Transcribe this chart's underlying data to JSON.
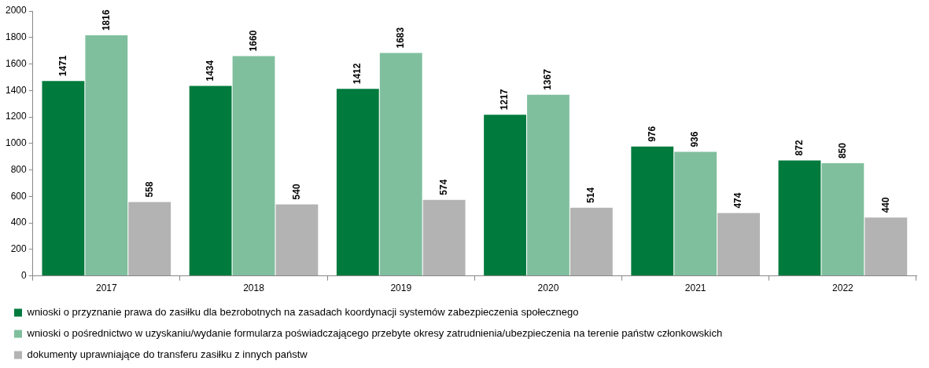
{
  "chart_data": {
    "type": "bar",
    "categories": [
      "2017",
      "2018",
      "2019",
      "2020",
      "2021",
      "2022"
    ],
    "series": [
      {
        "name": "wnioski o przyznanie prawa do zasiłku dla bezrobotnych na zasadach koordynacji systemów zabezpieczenia społecznego",
        "color": "#007a3d",
        "values": [
          1471,
          1434,
          1412,
          1217,
          976,
          872
        ]
      },
      {
        "name": "wnioski o pośrednictwo w uzyskaniu/wydanie formularza poświadczającego przebyte okresy zatrudnienia/ubezpieczenia na terenie państw członkowskich",
        "color": "#80bf9e",
        "values": [
          1816,
          1660,
          1683,
          1367,
          936,
          850
        ]
      },
      {
        "name": "dokumenty uprawniające do transferu zasiłku z innych państw",
        "color": "#b3b3b3",
        "values": [
          558,
          540,
          574,
          514,
          474,
          440
        ]
      }
    ],
    "ylim": [
      0,
      2000
    ],
    "yticks": [
      0,
      200,
      400,
      600,
      800,
      1000,
      1200,
      1400,
      1600,
      1800,
      2000
    ],
    "grid": false,
    "legend": "bottom",
    "data_labels": true
  }
}
